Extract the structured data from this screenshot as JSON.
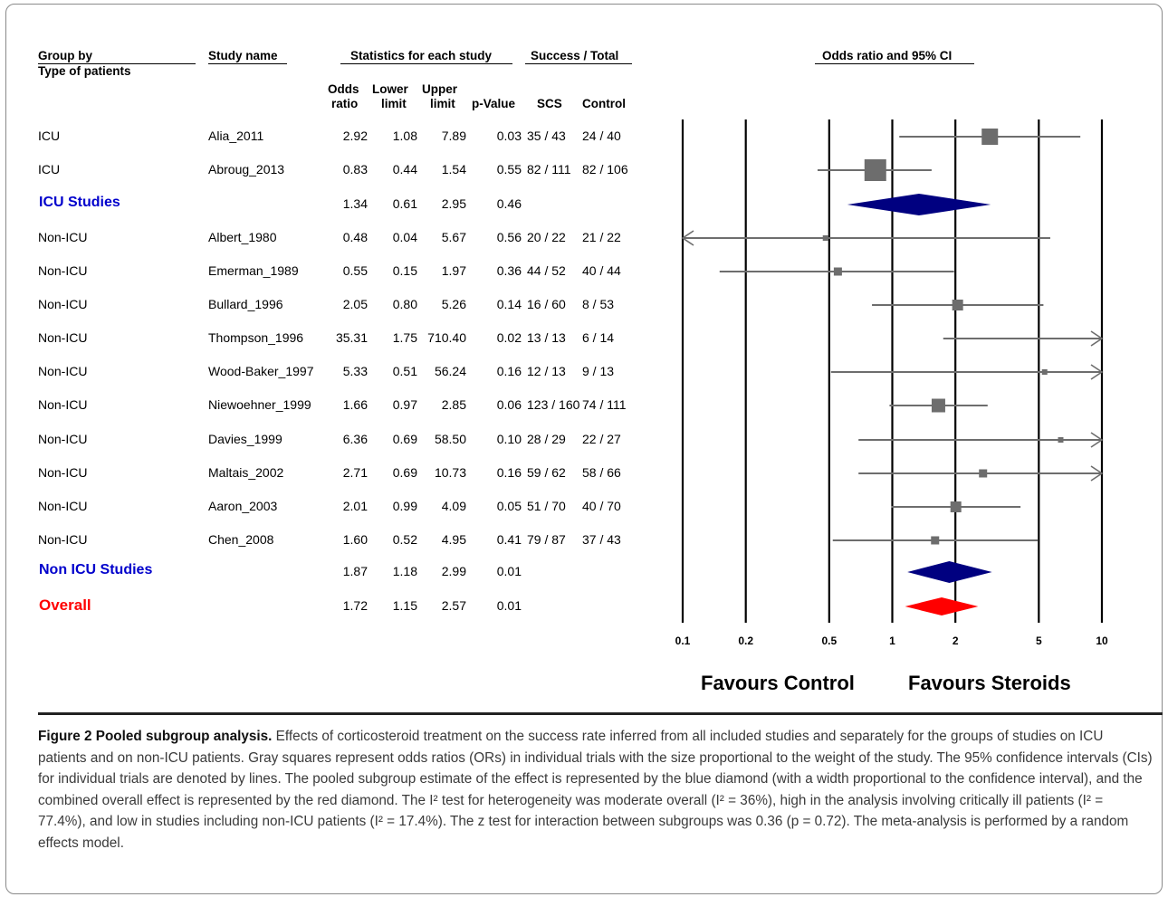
{
  "headers": {
    "group_by": "Group by",
    "type_of_patients": "Type of patients",
    "study_name": "Study name",
    "stats_each_study": "Statistics for each study",
    "success_total": "Success / Total",
    "or_ci": "Odds ratio and 95% CI",
    "odds_ratio_1": "Odds",
    "odds_ratio_2": "ratio",
    "lower_1": "Lower",
    "lower_2": "limit",
    "upper_1": "Upper",
    "upper_2": "limit",
    "pvalue": "p-Value",
    "scs": "SCS",
    "control": "Control"
  },
  "favours": {
    "left": "Favours Control",
    "right": "Favours Steroids"
  },
  "colors": {
    "square": "#6d6d6d",
    "icu_diamond": "#000080",
    "overall_diamond": "#ff0000",
    "icu_label": "#0000cc",
    "overall_label": "#ff0000"
  },
  "chart_data": {
    "type": "forest",
    "x_scale": "log",
    "x_ticks": [
      "0.1",
      "0.2",
      "0.5",
      "1",
      "2",
      "5",
      "10"
    ],
    "xlim": [
      0.1,
      10
    ],
    "rows": [
      {
        "group": "ICU",
        "study": "Alia_2011",
        "or": "2.92",
        "lower": "1.08",
        "upper": "7.89",
        "p": "0.03",
        "scs": "35 / 43",
        "control": "24 / 40",
        "or_v": 2.92,
        "lo_v": 1.08,
        "hi_v": 7.89,
        "weight": 5
      },
      {
        "group": "ICU",
        "study": "Abroug_2013",
        "or": "0.83",
        "lower": "0.44",
        "upper": "1.54",
        "p": "0.55",
        "scs": "82 / 111",
        "control": "82 / 106",
        "or_v": 0.83,
        "lo_v": 0.44,
        "hi_v": 1.54,
        "weight": 7
      },
      {
        "kind": "subtotal",
        "label": "ICU Studies",
        "or": "1.34",
        "lower": "0.61",
        "upper": "2.95",
        "p": "0.46",
        "or_v": 1.34,
        "lo_v": 0.61,
        "hi_v": 2.95,
        "color": "#000080"
      },
      {
        "group": "Non-ICU",
        "study": "Albert_1980",
        "or": "0.48",
        "lower": "0.04",
        "upper": "5.67",
        "p": "0.56",
        "scs": "20 / 22",
        "control": "21 / 22",
        "or_v": 0.48,
        "lo_v": 0.04,
        "hi_v": 5.67,
        "weight": 1
      },
      {
        "group": "Non-ICU",
        "study": "Emerman_1989",
        "or": "0.55",
        "lower": "0.15",
        "upper": "1.97",
        "p": "0.36",
        "scs": "44 / 52",
        "control": "40 / 44",
        "or_v": 0.55,
        "lo_v": 0.15,
        "hi_v": 1.97,
        "weight": 2
      },
      {
        "group": "Non-ICU",
        "study": "Bullard_1996",
        "or": "2.05",
        "lower": "0.80",
        "upper": "5.26",
        "p": "0.14",
        "scs": "16 / 60",
        "control": "8 / 53",
        "or_v": 2.05,
        "lo_v": 0.8,
        "hi_v": 5.26,
        "weight": 3
      },
      {
        "group": "Non-ICU",
        "study": "Thompson_1996",
        "or": "35.31",
        "lower": "1.75",
        "upper": "710.40",
        "p": "0.02",
        "scs": "13 / 13",
        "control": "6 / 14",
        "or_v": 35.31,
        "lo_v": 1.75,
        "hi_v": 710.4,
        "weight": 1
      },
      {
        "group": "Non-ICU",
        "study": "Wood-Baker_1997",
        "or": "5.33",
        "lower": "0.51",
        "upper": "56.24",
        "p": "0.16",
        "scs": "12 / 13",
        "control": "9 / 13",
        "or_v": 5.33,
        "lo_v": 0.51,
        "hi_v": 56.24,
        "weight": 1
      },
      {
        "group": "Non-ICU",
        "study": "Niewoehner_1999",
        "or": "1.66",
        "lower": "0.97",
        "upper": "2.85",
        "p": "0.06",
        "scs": "123 / 160",
        "control": "74 / 111",
        "or_v": 1.66,
        "lo_v": 0.97,
        "hi_v": 2.85,
        "weight": 4
      },
      {
        "group": "Non-ICU",
        "study": "Davies_1999",
        "or": "6.36",
        "lower": "0.69",
        "upper": "58.50",
        "p": "0.10",
        "scs": "28 / 29",
        "control": "22 / 27",
        "or_v": 6.36,
        "lo_v": 0.69,
        "hi_v": 58.5,
        "weight": 1
      },
      {
        "group": "Non-ICU",
        "study": "Maltais_2002",
        "or": "2.71",
        "lower": "0.69",
        "upper": "10.73",
        "p": "0.16",
        "scs": "59 / 62",
        "control": "58 / 66",
        "or_v": 2.71,
        "lo_v": 0.69,
        "hi_v": 10.73,
        "weight": 2
      },
      {
        "group": "Non-ICU",
        "study": "Aaron_2003",
        "or": "2.01",
        "lower": "0.99",
        "upper": "4.09",
        "p": "0.05",
        "scs": "51 / 70",
        "control": "40 / 70",
        "or_v": 2.01,
        "lo_v": 0.99,
        "hi_v": 4.09,
        "weight": 3
      },
      {
        "group": "Non-ICU",
        "study": "Chen_2008",
        "or": "1.60",
        "lower": "0.52",
        "upper": "4.95",
        "p": "0.41",
        "scs": "79 / 87",
        "control": "37 / 43",
        "or_v": 1.6,
        "lo_v": 0.52,
        "hi_v": 4.95,
        "weight": 2
      },
      {
        "kind": "subtotal",
        "label": "Non ICU Studies",
        "or": "1.87",
        "lower": "1.18",
        "upper": "2.99",
        "p": "0.01",
        "or_v": 1.87,
        "lo_v": 1.18,
        "hi_v": 2.99,
        "color": "#000080"
      },
      {
        "kind": "overall",
        "label": "Overall",
        "or": "1.72",
        "lower": "1.15",
        "upper": "2.57",
        "p": "0.01",
        "or_v": 1.72,
        "lo_v": 1.15,
        "hi_v": 2.57,
        "color": "#ff0000"
      }
    ]
  },
  "caption": {
    "lead": "Figure 2 Pooled subgroup analysis.",
    "body": " Effects of corticosteroid treatment on the success rate inferred from all included studies and separately for the groups of studies on ICU patients and on non-ICU patients. Gray squares represent odds ratios (ORs) in individual trials with the size proportional to the weight of the study. The 95% confidence intervals (CIs) for individual trials are denoted by lines. The pooled subgroup estimate of the effect is represented by the blue diamond (with a width proportional to the confidence interval), and the combined overall effect is represented by the red diamond. The I² test for heterogeneity was moderate overall (I² = 36%), high in the analysis involving critically ill patients (I² = 77.4%), and low in studies including non-ICU patients (I² = 17.4%). The z test for interaction between subgroups was 0.36 (p = 0.72). The meta-analysis is performed by a random effects model."
  }
}
